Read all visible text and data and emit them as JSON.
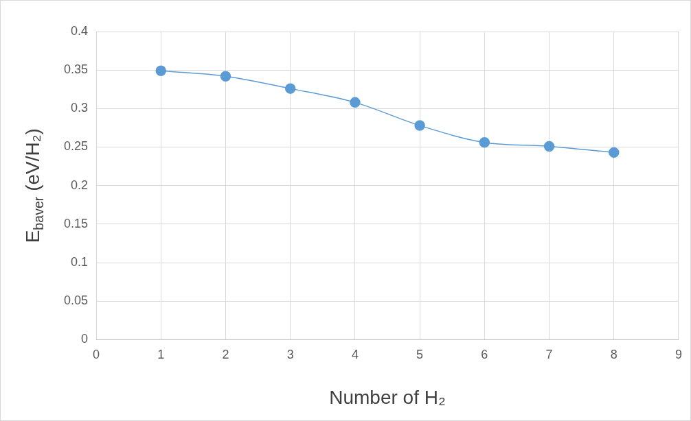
{
  "chart_data": {
    "type": "line",
    "xlabel": "Number of H₂",
    "ylabel": "E$_{baver}$ (eV/H₂)",
    "x": [
      1,
      2,
      3,
      4,
      5,
      6,
      7,
      8
    ],
    "series": [
      {
        "color": "#5b9bd5",
        "values": [
          0.349,
          0.342,
          0.326,
          0.308,
          0.278,
          0.256,
          0.251,
          0.243
        ]
      }
    ],
    "xlim": [
      0,
      9
    ],
    "xticks": [
      0,
      1,
      2,
      3,
      4,
      5,
      6,
      7,
      8,
      9
    ],
    "ylim": [
      0,
      0.4
    ],
    "yticks": [
      0,
      0.05,
      0.1,
      0.15,
      0.2,
      0.25,
      0.3,
      0.35,
      0.4
    ],
    "grid": true,
    "legend": false,
    "marker": "circle",
    "line_style": "solid"
  }
}
